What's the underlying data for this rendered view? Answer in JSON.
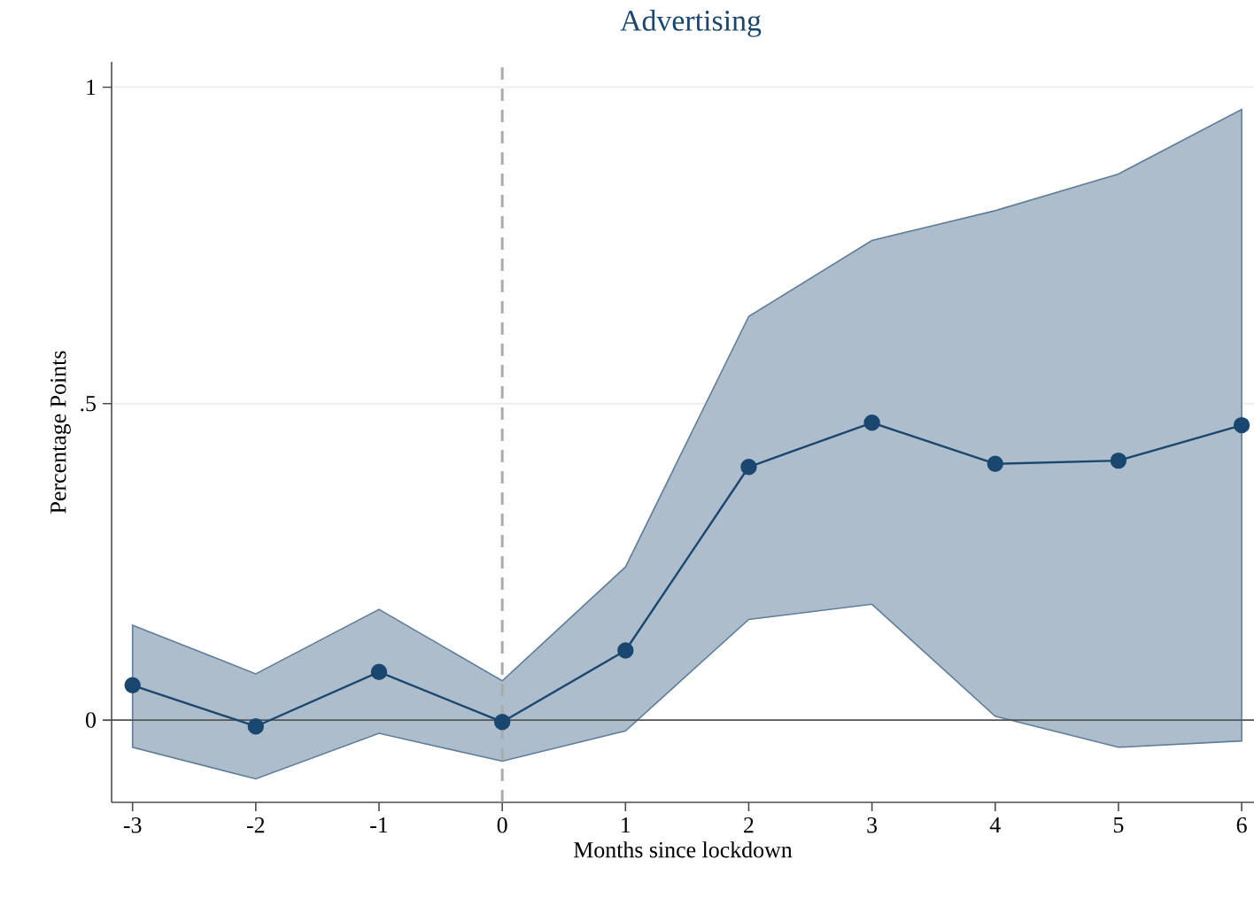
{
  "chart_data": {
    "type": "line",
    "title": "Advertising",
    "xlabel": "Months since lockdown",
    "ylabel": "Percentage Points",
    "x": [
      -3,
      -2,
      -1,
      0,
      1,
      2,
      3,
      4,
      5,
      6
    ],
    "series": [
      {
        "color": "#1a476f",
        "values": [
          0.055,
          -0.01,
          0.076,
          -0.003,
          0.11,
          0.4,
          0.47,
          0.405,
          0.41,
          0.466
        ],
        "lower": [
          -0.043,
          -0.093,
          -0.021,
          -0.065,
          -0.017,
          0.159,
          0.183,
          0.006,
          -0.043,
          -0.033
        ],
        "upper": [
          0.15,
          0.073,
          0.175,
          0.062,
          0.242,
          0.638,
          0.758,
          0.805,
          0.863,
          0.965
        ]
      }
    ],
    "xlim": [
      -3.17,
      6.1
    ],
    "ylim": [
      -0.13,
      1.04
    ],
    "xticks": [
      -3,
      -2,
      -1,
      0,
      1,
      2,
      3,
      4,
      5,
      6
    ],
    "yticks": [
      0,
      {
        "value": 0.5,
        "label": ".5"
      },
      1
    ],
    "ref_lines": [
      {
        "axis": "y",
        "value": 0,
        "color": "#555555",
        "line_style": "solid"
      },
      {
        "axis": "x",
        "value": 0,
        "color": "#aaaaaa",
        "line_style": "dashed"
      }
    ],
    "grid": "y",
    "marker": "circle",
    "line_style": "solid"
  }
}
